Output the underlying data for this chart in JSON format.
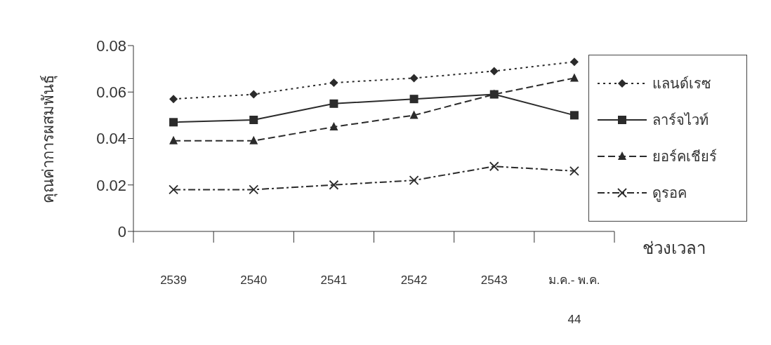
{
  "chart_data": {
    "type": "line",
    "xlabel": "ช่วงเวลา",
    "ylabel": "คุณค่าการผสมพันธุ์",
    "categories": [
      "2539",
      "2540",
      "2541",
      "2542",
      "2543",
      "ม.ค.- พ.ค. 44"
    ],
    "series": [
      {
        "name": "แลนด์เรซ",
        "color": "#2b2b2b",
        "marker": "diamond",
        "line_style": "dotted",
        "values": [
          0.057,
          0.059,
          0.064,
          0.066,
          0.069,
          0.073
        ]
      },
      {
        "name": "ลาร์จไวท์",
        "color": "#2b2b2b",
        "marker": "square",
        "line_style": "solid",
        "values": [
          0.047,
          0.048,
          0.055,
          0.057,
          0.059,
          0.05
        ]
      },
      {
        "name": "ยอร์คเชียร์",
        "color": "#2b2b2b",
        "marker": "triangle",
        "line_style": "dashed",
        "values": [
          0.039,
          0.039,
          0.045,
          0.05,
          0.059,
          0.066
        ]
      },
      {
        "name": "ดูรอค",
        "color": "#2b2b2b",
        "marker": "cross",
        "line_style": "dashdot",
        "values": [
          0.018,
          0.018,
          0.02,
          0.022,
          0.028,
          0.026
        ]
      }
    ],
    "ylim": [
      0,
      0.08
    ],
    "yticks": [
      0,
      0.02,
      0.04,
      0.06,
      0.08
    ],
    "grid": false,
    "legend": "right"
  }
}
